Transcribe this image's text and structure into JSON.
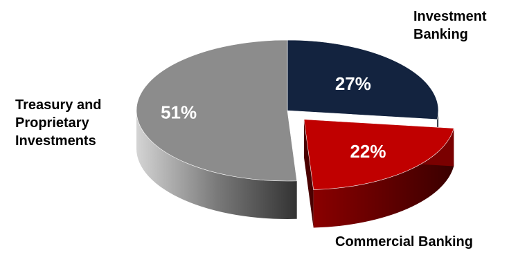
{
  "chart_data": {
    "type": "pie",
    "style": "3d-exploded",
    "categories": [
      "Investment Banking",
      "Commercial Banking",
      "Treasury and Proprietary Investments"
    ],
    "values": [
      27,
      22,
      51
    ],
    "value_labels": [
      "27%",
      "22%",
      "51%"
    ],
    "category_label_lines": [
      [
        "Investment",
        "Banking"
      ],
      [
        "Commercial Banking"
      ],
      [
        "Treasury and",
        "Proprietary",
        "Investments"
      ]
    ],
    "colors": [
      "#13233f",
      "#c00000",
      "#8c8c8c"
    ],
    "exploded": [
      "Commercial Banking"
    ]
  }
}
